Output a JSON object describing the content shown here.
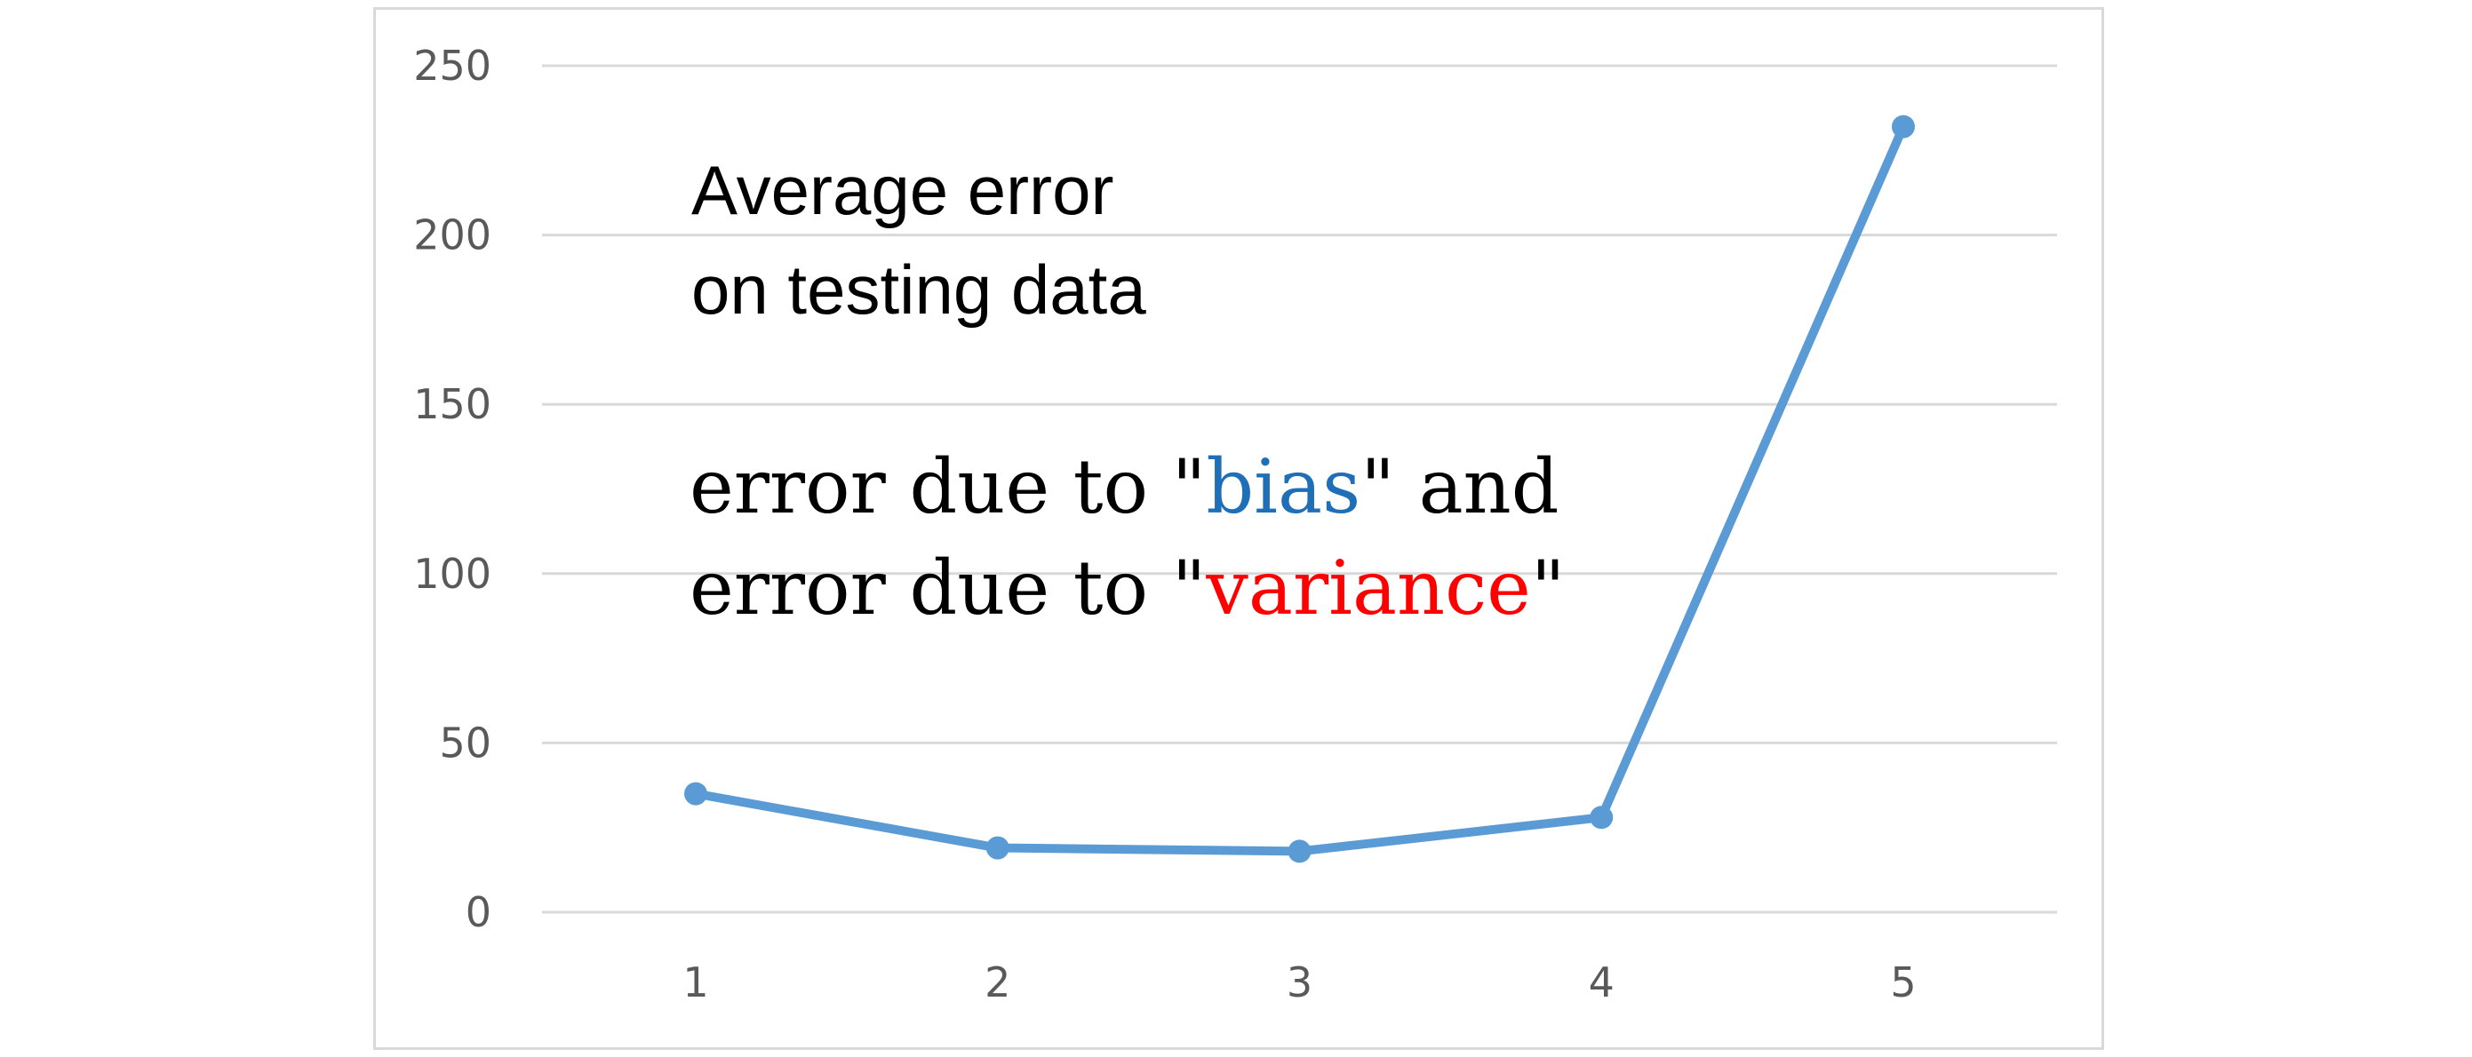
{
  "chart_data": {
    "type": "line",
    "x": [
      1,
      2,
      3,
      4,
      5
    ],
    "series": [
      {
        "values": [
          35,
          19,
          18,
          28,
          232
        ]
      }
    ],
    "x_tick_labels": [
      "1",
      "2",
      "3",
      "4",
      "5"
    ],
    "y_tick_labels": [
      "0",
      "50",
      "100",
      "150",
      "200",
      "250"
    ],
    "ylim": [
      0,
      250
    ],
    "y_ticks": [
      0,
      50,
      100,
      150,
      200,
      250
    ],
    "grid": "horizontal",
    "legend": "none",
    "colors": {
      "line": "#5b9bd5",
      "grid": "#d9d9d9",
      "tick_text": "#595959",
      "border": "#d9d9d9"
    }
  },
  "annotations": {
    "line1": "Average error",
    "line2": "on testing data",
    "bias_prefix": "error due to \"",
    "bias_word": "bias",
    "bias_suffix": "\" and",
    "variance_prefix": "error due to \"",
    "variance_word": "variance",
    "variance_suffix": "\"",
    "bias_color": "#1f6fb8",
    "variance_color": "#ff0000"
  }
}
